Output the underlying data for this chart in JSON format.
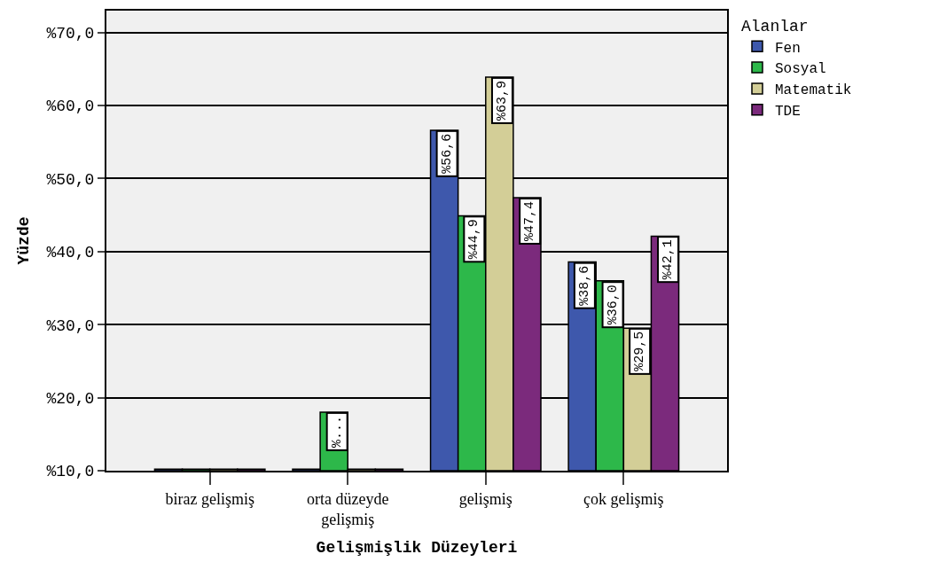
{
  "chart_data": {
    "type": "bar",
    "xlabel": "Gelişmişlik Düzeyleri",
    "ylabel": "Yüzde",
    "legend_title": "Alanlar",
    "categories": [
      "biraz gelişmiş",
      "orta düzeyde\ngelişmiş",
      "gelişmiş",
      "çok gelişmiş"
    ],
    "series": [
      {
        "name": "Fen",
        "color": "#3e58ac",
        "values": [
          10.2,
          10.2,
          56.6,
          38.6
        ],
        "value_labels": [
          null,
          null,
          "%56,6",
          "%38,6"
        ]
      },
      {
        "name": "Sosyal",
        "color": "#2db84a",
        "values": [
          10.2,
          18.0,
          44.9,
          36.0
        ],
        "value_labels": [
          null,
          "%...",
          "%44,9",
          "%36,0"
        ]
      },
      {
        "name": "Matematik",
        "color": "#d3ce97",
        "values": [
          10.2,
          10.2,
          63.9,
          29.5
        ],
        "value_labels": [
          null,
          null,
          "%63,9",
          "%29,5"
        ]
      },
      {
        "name": "TDE",
        "color": "#7b2a7c",
        "values": [
          10.2,
          10.2,
          47.4,
          42.1
        ],
        "value_labels": [
          null,
          null,
          "%47,4",
          "%42,1"
        ]
      }
    ],
    "ylim": [
      10,
      73
    ],
    "yticks": [
      {
        "value": 10,
        "label": "%10,0"
      },
      {
        "value": 20,
        "label": "%20,0"
      },
      {
        "value": 30,
        "label": "%30,0"
      },
      {
        "value": 40,
        "label": "%40,0"
      },
      {
        "value": 50,
        "label": "%50,0"
      },
      {
        "value": 60,
        "label": "%60,0"
      },
      {
        "value": 70,
        "label": "%70,0"
      }
    ],
    "grid": "y",
    "legend": "top right"
  }
}
